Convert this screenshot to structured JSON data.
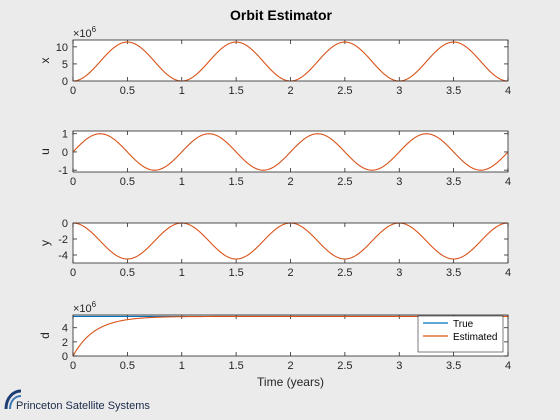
{
  "window": {
    "title": "Orbit Estimator"
  },
  "branding": {
    "company": "Princeton Satellite Systems"
  },
  "chart_data": [
    {
      "type": "line",
      "ylabel": "x",
      "exponent_label": "×10",
      "exponent_power": "6",
      "xlim": [
        0,
        4
      ],
      "ylim": [
        0,
        12
      ],
      "xticks": [
        "0",
        "0.5",
        "1",
        "1.5",
        "2",
        "2.5",
        "3",
        "3.5",
        "4"
      ],
      "yticks": [
        "0",
        "5",
        "10"
      ],
      "ytick_values": [
        0,
        5,
        10
      ],
      "series": [
        {
          "function": "5.7*(1-cos(2*pi*t))",
          "color": "#d95319"
        }
      ]
    },
    {
      "type": "line",
      "ylabel": "u",
      "xlim": [
        0,
        4
      ],
      "ylim": [
        -1.1,
        1.15
      ],
      "xticks": [
        "0",
        "0.5",
        "1",
        "1.5",
        "2",
        "2.5",
        "3",
        "3.5",
        "4"
      ],
      "yticks": [
        "-1",
        "0",
        "1"
      ],
      "ytick_values": [
        -1,
        0,
        1
      ],
      "series": [
        {
          "function": "sin(2*pi*t)",
          "color": "#d95319"
        }
      ]
    },
    {
      "type": "line",
      "ylabel": "y",
      "xlim": [
        0,
        4
      ],
      "ylim": [
        -5,
        0
      ],
      "xticks": [
        "0",
        "0.5",
        "1",
        "1.5",
        "2",
        "2.5",
        "3",
        "3.5",
        "4"
      ],
      "yticks": [
        "0",
        "-2",
        "-4"
      ],
      "ytick_values": [
        0,
        -2,
        -4
      ],
      "series": [
        {
          "function": "-2.25*(1-cos(2*pi*t))",
          "color": "#d95319"
        }
      ]
    },
    {
      "type": "line",
      "ylabel": "d",
      "xlabel": "Time (years)",
      "exponent_label": "×10",
      "exponent_power": "6",
      "xlim": [
        0,
        4
      ],
      "ylim": [
        0,
        5.8
      ],
      "xticks": [
        "0",
        "0.5",
        "1",
        "1.5",
        "2",
        "2.5",
        "3",
        "3.5",
        "4"
      ],
      "yticks": [
        "0",
        "2",
        "4"
      ],
      "ytick_values": [
        0,
        2,
        4
      ],
      "legend_position": "bottom-right",
      "series": [
        {
          "name": "True",
          "function": "5.6",
          "color": "#0072bd"
        },
        {
          "name": "Estimated",
          "function": "5.6*(1-exp(-5*t))",
          "color": "#d95319"
        }
      ]
    }
  ]
}
